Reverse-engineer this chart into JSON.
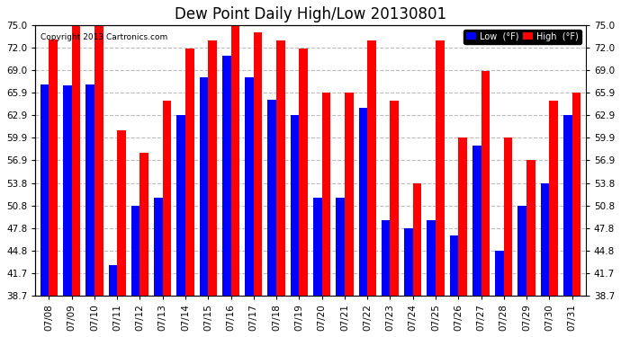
{
  "title": "Dew Point Daily High/Low 20130801",
  "copyright": "Copyright 2013 Cartronics.com",
  "dates": [
    "07/08",
    "07/09",
    "07/10",
    "07/11",
    "07/12",
    "07/13",
    "07/14",
    "07/15",
    "07/16",
    "07/17",
    "07/18",
    "07/19",
    "07/20",
    "07/21",
    "07/22",
    "07/23",
    "07/24",
    "07/25",
    "07/26",
    "07/27",
    "07/28",
    "07/29",
    "07/30",
    "07/31"
  ],
  "high": [
    73.0,
    75.0,
    75.0,
    60.9,
    57.9,
    64.9,
    71.9,
    72.9,
    75.0,
    74.0,
    72.9,
    71.9,
    65.9,
    65.9,
    72.9,
    64.9,
    53.8,
    72.9,
    59.9,
    68.9,
    59.9,
    56.9,
    64.9,
    65.9
  ],
  "low": [
    67.0,
    66.9,
    67.0,
    42.8,
    50.8,
    51.8,
    62.9,
    68.0,
    70.9,
    68.0,
    65.0,
    62.9,
    51.8,
    51.8,
    63.9,
    48.8,
    47.8,
    48.8,
    46.8,
    58.9,
    44.8,
    50.8,
    53.8,
    62.9
  ],
  "ylim": [
    38.7,
    75.0
  ],
  "yticks": [
    38.7,
    41.7,
    44.8,
    47.8,
    50.8,
    53.8,
    56.9,
    59.9,
    62.9,
    65.9,
    69.0,
    72.0,
    75.0
  ],
  "bar_width": 0.38,
  "high_color": "#ff0000",
  "low_color": "#0000ff",
  "bg_color": "#ffffff",
  "grid_color": "#bbbbbb",
  "title_fontsize": 12,
  "tick_fontsize": 7.5,
  "legend_high_label": "High  (°F)",
  "legend_low_label": "Low  (°F)"
}
